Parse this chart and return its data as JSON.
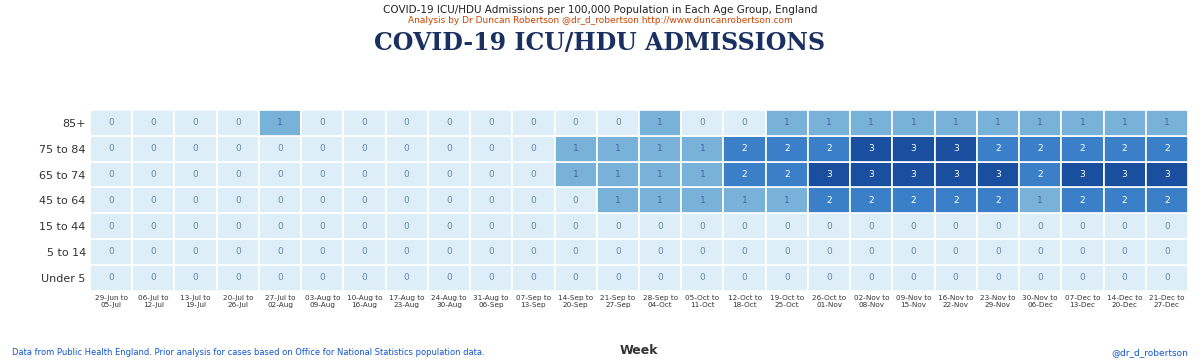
{
  "title_small": "COVID-19 ICU/HDU Admissions per 100,000 Population in Each Age Group, England",
  "subtitle_small": "Analysis by Dr Duncan Robertson @dr_d_robertson http://www.duncanrobertson.com",
  "title_large": "COVID-19 ICU/HDU ADMISSIONS",
  "xlabel": "Week",
  "footer_left": "Data from Public Health England. Prior analysis for cases based on Office for National Statistics population data.",
  "footer_right": "@dr_d_robertson",
  "age_groups": [
    "85+",
    "75 to 84",
    "65 to 74",
    "45 to 64",
    "15 to 44",
    "5 to 14",
    "Under 5"
  ],
  "weeks": [
    "29-Jun to\n05-Jul",
    "06-Jul to\n12-Jul",
    "13-Jul to\n19-Jul",
    "20-Jul to\n26-Jul",
    "27-Jul to\n02-Aug",
    "03-Aug to\n09-Aug",
    "10-Aug to\n16-Aug",
    "17-Aug to\n23-Aug",
    "24-Aug to\n30-Aug",
    "31-Aug to\n06-Sep",
    "07-Sep to\n13-Sep",
    "14-Sep to\n20-Sep",
    "21-Sep to\n27-Sep",
    "28-Sep to\n04-Oct",
    "05-Oct to\n11-Oct",
    "12-Oct to\n18-Oct",
    "19-Oct to\n25-Oct",
    "26-Oct to\n01-Nov",
    "02-Nov to\n08-Nov",
    "09-Nov to\n15-Nov",
    "16-Nov to\n22-Nov",
    "23-Nov to\n29-Nov",
    "30-Nov to\n06-Dec",
    "07-Dec to\n13-Dec",
    "14-Dec to\n20-Dec",
    "21-Dec to\n27-Dec"
  ],
  "data_ordered_top_to_bottom": [
    [
      0,
      0,
      0,
      0,
      1,
      0,
      0,
      0,
      0,
      0,
      0,
      0,
      0,
      1,
      0,
      0,
      1,
      1,
      1,
      1,
      1,
      1,
      1,
      1,
      1,
      1
    ],
    [
      0,
      0,
      0,
      0,
      0,
      0,
      0,
      0,
      0,
      0,
      0,
      1,
      1,
      1,
      1,
      2,
      2,
      2,
      3,
      3,
      3,
      2,
      2,
      2,
      2,
      2
    ],
    [
      0,
      0,
      0,
      0,
      0,
      0,
      0,
      0,
      0,
      0,
      0,
      1,
      1,
      1,
      1,
      2,
      2,
      3,
      3,
      3,
      3,
      3,
      2,
      3,
      3,
      3
    ],
    [
      0,
      0,
      0,
      0,
      0,
      0,
      0,
      0,
      0,
      0,
      0,
      0,
      1,
      1,
      1,
      1,
      1,
      2,
      2,
      2,
      2,
      2,
      1,
      2,
      2,
      2
    ],
    [
      0,
      0,
      0,
      0,
      0,
      0,
      0,
      0,
      0,
      0,
      0,
      0,
      0,
      0,
      0,
      0,
      0,
      0,
      0,
      0,
      0,
      0,
      0,
      0,
      0,
      0
    ],
    [
      0,
      0,
      0,
      0,
      0,
      0,
      0,
      0,
      0,
      0,
      0,
      0,
      0,
      0,
      0,
      0,
      0,
      0,
      0,
      0,
      0,
      0,
      0,
      0,
      0,
      0
    ],
    [
      0,
      0,
      0,
      0,
      0,
      0,
      0,
      0,
      0,
      0,
      0,
      0,
      0,
      0,
      0,
      0,
      0,
      0,
      0,
      0,
      0,
      0,
      0,
      0,
      0,
      0
    ]
  ],
  "vmin": 0,
  "vmax": 3,
  "background_color": "#ffffff",
  "title_color": "#222222",
  "subtitle_color": "#cc4400",
  "large_title_color": "#1a3060",
  "axis_label_color": "#333333",
  "footer_color": "#1155cc",
  "cell_text_color_zero": "#6688aa",
  "cell_text_color_one": "#4466aa",
  "cell_text_color_high": "#ffffff"
}
